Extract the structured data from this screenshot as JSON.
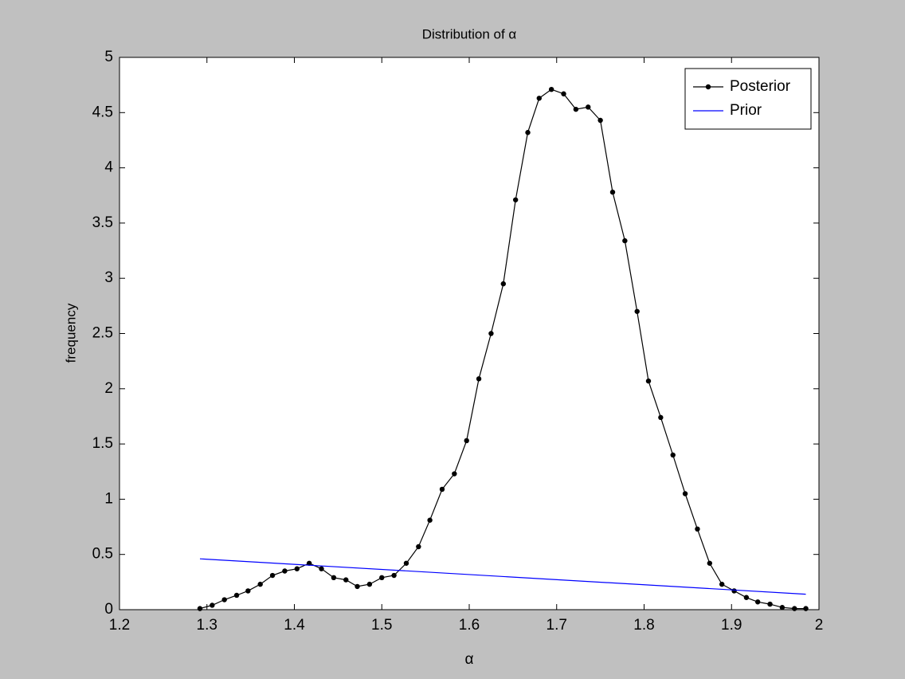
{
  "chart_data": {
    "type": "line",
    "title": "Distribution of α",
    "xlabel": "α",
    "ylabel": "frequency",
    "xlim": [
      1.2,
      2
    ],
    "ylim": [
      0,
      5
    ],
    "xticks": [
      1.2,
      1.3,
      1.4,
      1.5,
      1.6,
      1.7,
      1.8,
      1.9,
      2
    ],
    "yticks": [
      0,
      0.5,
      1,
      1.5,
      2,
      2.5,
      3,
      3.5,
      4,
      4.5,
      5
    ],
    "grid": false,
    "legend": "upper right",
    "series": [
      {
        "name": "Posterior",
        "color": "#000000",
        "marker": "dot",
        "x": [
          1.292,
          1.306,
          1.32,
          1.334,
          1.347,
          1.361,
          1.375,
          1.389,
          1.403,
          1.417,
          1.431,
          1.445,
          1.459,
          1.472,
          1.486,
          1.5,
          1.514,
          1.528,
          1.542,
          1.555,
          1.569,
          1.583,
          1.597,
          1.611,
          1.625,
          1.639,
          1.653,
          1.667,
          1.68,
          1.694,
          1.708,
          1.722,
          1.736,
          1.75,
          1.764,
          1.778,
          1.792,
          1.805,
          1.819,
          1.833,
          1.847,
          1.861,
          1.875,
          1.889,
          1.903,
          1.917,
          1.93,
          1.944,
          1.958,
          1.972,
          1.985
        ],
        "values": [
          0.01,
          0.04,
          0.09,
          0.13,
          0.17,
          0.23,
          0.31,
          0.35,
          0.37,
          0.42,
          0.37,
          0.29,
          0.27,
          0.21,
          0.23,
          0.29,
          0.31,
          0.42,
          0.57,
          0.81,
          1.09,
          1.23,
          1.53,
          2.09,
          2.5,
          2.95,
          3.71,
          4.32,
          4.63,
          4.71,
          4.67,
          4.53,
          4.55,
          4.43,
          3.78,
          3.34,
          2.7,
          2.07,
          1.74,
          1.4,
          1.05,
          0.73,
          0.42,
          0.23,
          0.17,
          0.11,
          0.07,
          0.05,
          0.02,
          0.01,
          0.01
        ]
      },
      {
        "name": "Prior",
        "color": "#0000ff",
        "marker": "none",
        "x": [
          1.292,
          1.985
        ],
        "values": [
          0.46,
          0.14
        ]
      }
    ]
  }
}
